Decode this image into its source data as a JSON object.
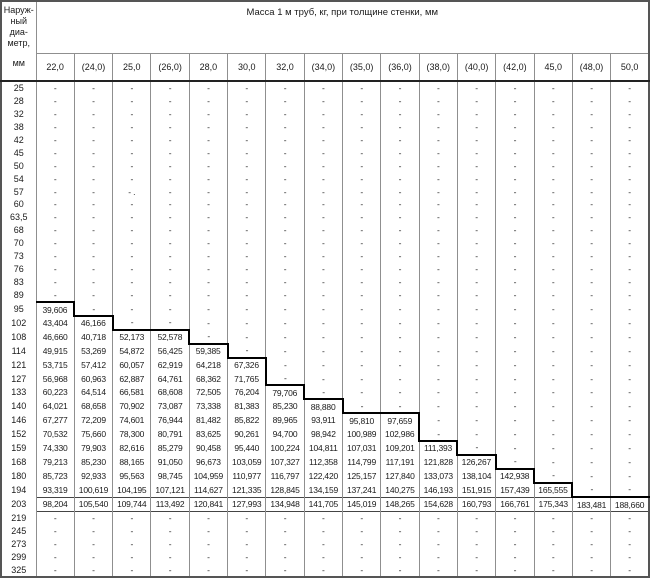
{
  "header": {
    "diameter_lines": [
      "Наруж-",
      "ный",
      "диа-",
      "метр,"
    ],
    "unit_label": "мм",
    "span_label": "Масса 1 м труб, кг, при толщине стенки, мм",
    "thickness_columns": [
      "22,0",
      "(24,0)",
      "25,0",
      "(26,0)",
      "28,0",
      "30,0",
      "32,0",
      "(34,0)",
      "(35,0)",
      "(36,0)",
      "(38,0)",
      "(40,0)",
      "(42,0)",
      "45,0",
      "(48,0)",
      "50,0"
    ]
  },
  "style": {
    "grid_line_color": "#8f8f8f",
    "step_line_color": "#000000",
    "text_color": "#1a1a1a",
    "background_color": "#ffffff"
  },
  "table": {
    "empty_marker": "-",
    "rows": [
      {
        "diameter": "25",
        "values": [
          "-",
          "-",
          "-",
          "-",
          "-",
          "-",
          "-",
          "-",
          "-",
          "-",
          "-",
          "-",
          "-",
          "-",
          "-",
          "-"
        ]
      },
      {
        "diameter": "28",
        "values": [
          "-",
          "-",
          "-",
          "-",
          "-",
          "-",
          "-",
          "-",
          "-",
          "-",
          "-",
          "-",
          "-",
          "-",
          "-",
          "-"
        ]
      },
      {
        "diameter": "32",
        "values": [
          "-",
          "-",
          "-",
          "-",
          "-",
          "-",
          "-",
          "-",
          "-",
          "-",
          "-",
          "-",
          "-",
          "-",
          "-",
          "-"
        ]
      },
      {
        "diameter": "38",
        "values": [
          "-",
          "-",
          "-",
          "-",
          "-",
          "-",
          "-",
          "-",
          "-",
          "-",
          "-",
          "-",
          "-",
          "-",
          "-",
          "-"
        ]
      },
      {
        "diameter": "42",
        "values": [
          "-",
          "-",
          "-",
          "-",
          "-",
          "-",
          "-",
          "-",
          "-",
          "-",
          "-",
          "-",
          "-",
          "-",
          "-",
          "-"
        ]
      },
      {
        "diameter": "45",
        "values": [
          "-",
          "-",
          "-",
          "-",
          "-",
          "-",
          "-",
          "-",
          "-",
          "-",
          "-",
          "-",
          "-",
          "-",
          "-",
          "-"
        ]
      },
      {
        "diameter": "50",
        "values": [
          "-",
          "-",
          "-",
          "-",
          "-",
          "-",
          "-",
          "-",
          "-",
          "-",
          "-",
          "-",
          "-",
          "-",
          "-",
          "-"
        ]
      },
      {
        "diameter": "54",
        "values": [
          "-",
          "-",
          "-",
          "-",
          "-",
          "-",
          "-",
          "-",
          "-",
          "-",
          "-",
          "-",
          "-",
          "-",
          "-",
          "-"
        ]
      },
      {
        "diameter": "57",
        "values": [
          "-",
          "-",
          "- .",
          "-",
          "-",
          "-",
          "-",
          "-",
          "-",
          "-",
          "-",
          "-",
          "-",
          "-",
          "-",
          "-"
        ]
      },
      {
        "diameter": "60",
        "values": [
          "-",
          "-",
          "-",
          "-",
          "-",
          "-",
          "-",
          "-",
          "-",
          "-",
          "-",
          "-",
          "-",
          "-",
          "-",
          "-"
        ]
      },
      {
        "diameter": "63,5",
        "values": [
          "-",
          "-",
          "-",
          "-",
          "-",
          "-",
          "-",
          "-",
          "-",
          "-",
          "-",
          "-",
          "-",
          "-",
          "-",
          "-"
        ]
      },
      {
        "diameter": "68",
        "values": [
          "-",
          "-",
          "-",
          "-",
          "-",
          "-",
          "-",
          "-",
          "-",
          "-",
          "-",
          "-",
          "-",
          "-",
          "-",
          "-"
        ]
      },
      {
        "diameter": "70",
        "values": [
          "-",
          "-",
          "-",
          "-",
          "-",
          "-",
          "-",
          "-",
          "-",
          "-",
          "-",
          "-",
          "-",
          "-",
          "-",
          "-"
        ]
      },
      {
        "diameter": "73",
        "values": [
          "-",
          "-",
          "-",
          "-",
          "-",
          "-",
          "-",
          "-",
          "-",
          "-",
          "-",
          "-",
          "-",
          "-",
          "-",
          "-"
        ]
      },
      {
        "diameter": "76",
        "values": [
          "-",
          "-",
          "-",
          "-",
          "-",
          "-",
          "-",
          "-",
          "-",
          "-",
          "-",
          "-",
          "-",
          "-",
          "-",
          "-"
        ]
      },
      {
        "diameter": "83",
        "values": [
          "-",
          "-",
          "-",
          "-",
          "-",
          "-",
          "-",
          "-",
          "-",
          "-",
          "-",
          "-",
          "-",
          "-",
          "-",
          "-"
        ]
      },
      {
        "diameter": "89",
        "values": [
          "-",
          "-",
          "-",
          "-",
          "-",
          "-",
          "-",
          "-",
          "-",
          "-",
          "-",
          "-",
          "-",
          "-",
          "-",
          "-"
        ]
      },
      {
        "diameter": "95",
        "values": [
          "39,606",
          "-",
          "-",
          "-",
          "-",
          "-",
          "-",
          "-",
          "-",
          "-",
          "-",
          "-",
          "-",
          "-",
          "-",
          "-"
        ]
      },
      {
        "diameter": "102",
        "values": [
          "43,404",
          "46,166",
          "-",
          "-",
          "-",
          "-",
          "-",
          "-",
          "-",
          "-",
          "-",
          "-",
          "-",
          "-",
          "-",
          "-"
        ]
      },
      {
        "diameter": "108",
        "values": [
          "46,660",
          "40,718",
          "52,173",
          "52,578",
          "-",
          "-",
          "-",
          "-",
          "-",
          "-",
          "-",
          "-",
          "-",
          "-",
          "-",
          "-"
        ]
      },
      {
        "diameter": "114",
        "values": [
          "49,915",
          "53,269",
          "54,872",
          "56,425",
          "59,385",
          "-",
          "-",
          "-",
          "-",
          "-",
          "-",
          "-",
          "-",
          "-",
          "-",
          "-"
        ]
      },
      {
        "diameter": "121",
        "values": [
          "53,715",
          "57,412",
          "60,057",
          "62,919",
          "64,218",
          "67,326",
          "-",
          "-",
          "-",
          "-",
          "-",
          "-",
          "-",
          "-",
          "-",
          "-"
        ]
      },
      {
        "diameter": "127",
        "values": [
          "56,968",
          "60,963",
          "62,887",
          "64,761",
          "68,362",
          "71,765",
          "-",
          "-",
          "-",
          "-",
          "-",
          "-",
          "-",
          "-",
          "-",
          "-"
        ]
      },
      {
        "diameter": "133",
        "values": [
          "60,223",
          "64,514",
          "66,581",
          "68,608",
          "72,505",
          "76,204",
          "79,706",
          "-",
          "-",
          "-",
          "-",
          "-",
          "-",
          "-",
          "-",
          "-"
        ]
      },
      {
        "diameter": "140",
        "values": [
          "64,021",
          "68,658",
          "70,902",
          "73,087",
          "73,338",
          "81,383",
          "85,230",
          "88,880",
          "-",
          "-",
          "-",
          "-",
          "-",
          "-",
          "-",
          "-"
        ]
      },
      {
        "diameter": "146",
        "values": [
          "67,277",
          "72,209",
          "74,601",
          "76,944",
          "81,482",
          "85,822",
          "89,965",
          "93,911",
          "95,810",
          "97,659",
          "-",
          "-",
          "-",
          "-",
          "-",
          "-"
        ]
      },
      {
        "diameter": "152",
        "values": [
          "70,532",
          "75,660",
          "78,300",
          "80,791",
          "83,625",
          "90,261",
          "94,700",
          "98,942",
          "100,989",
          "102,986",
          "-",
          "-",
          "-",
          "-",
          "-",
          "-"
        ]
      },
      {
        "diameter": "159",
        "values": [
          "74,330",
          "79,903",
          "82,616",
          "85,279",
          "90,458",
          "95,440",
          "100,224",
          "104,811",
          "107,031",
          "109,201",
          "111,393",
          "-",
          "-",
          "-",
          "-",
          "-"
        ]
      },
      {
        "diameter": "168",
        "values": [
          "79,213",
          "85,230",
          "88,165",
          "91,050",
          "96,673",
          "103,059",
          "107,327",
          "112,358",
          "114,799",
          "117,191",
          "121,828",
          "126,267",
          "-",
          "-",
          "-",
          "-"
        ]
      },
      {
        "diameter": "180",
        "values": [
          "85,723",
          "92,933",
          "95,563",
          "98,745",
          "104,959",
          "110,977",
          "116,797",
          "122,420",
          "125,157",
          "127,840",
          "133,073",
          "138,104",
          "142,938",
          "-",
          "-",
          "-"
        ]
      },
      {
        "diameter": "194",
        "values": [
          "93,319",
          "100,619",
          "104,195",
          "107,121",
          "114,627",
          "121,335",
          "128,845",
          "134,159",
          "137,241",
          "140,275",
          "146,193",
          "151,915",
          "157,439",
          "165,555",
          "-",
          "-"
        ]
      },
      {
        "diameter": "203",
        "values": [
          "98,204",
          "105,540",
          "109,744",
          "113,492",
          "120,841",
          "127,993",
          "134,948",
          "141,705",
          "145,019",
          "148,265",
          "154,628",
          "160,793",
          "166,761",
          "175,343",
          "183,481",
          "188,660"
        ]
      },
      {
        "diameter": "219",
        "values": [
          "-",
          "-",
          "-",
          "-",
          "-",
          "-",
          "-",
          "-",
          "-",
          "-",
          "-",
          "-",
          "-",
          "-",
          "-",
          "-"
        ]
      },
      {
        "diameter": "245",
        "values": [
          "-",
          "-",
          "-",
          "-",
          "-",
          "-",
          "-",
          "-",
          "-",
          "-",
          "-",
          "-",
          "-",
          "-",
          "-",
          "-"
        ]
      },
      {
        "diameter": "273",
        "values": [
          "-",
          "-",
          "-",
          "-",
          "-",
          "-",
          "-",
          "-",
          "-",
          "-",
          "-",
          "-",
          "-",
          "-",
          "-",
          "-"
        ]
      },
      {
        "diameter": "299",
        "values": [
          "-",
          "-",
          "-",
          "-",
          "-",
          "-",
          "-",
          "-",
          "-",
          "-",
          "-",
          "-",
          "-",
          "-",
          "-",
          "-"
        ]
      },
      {
        "diameter": "325",
        "values": [
          "-",
          "-",
          "-",
          "-",
          "-",
          "-",
          "-",
          "-",
          "-",
          "-",
          "-",
          "-",
          "-",
          "-",
          "-",
          "-"
        ]
      }
    ]
  }
}
